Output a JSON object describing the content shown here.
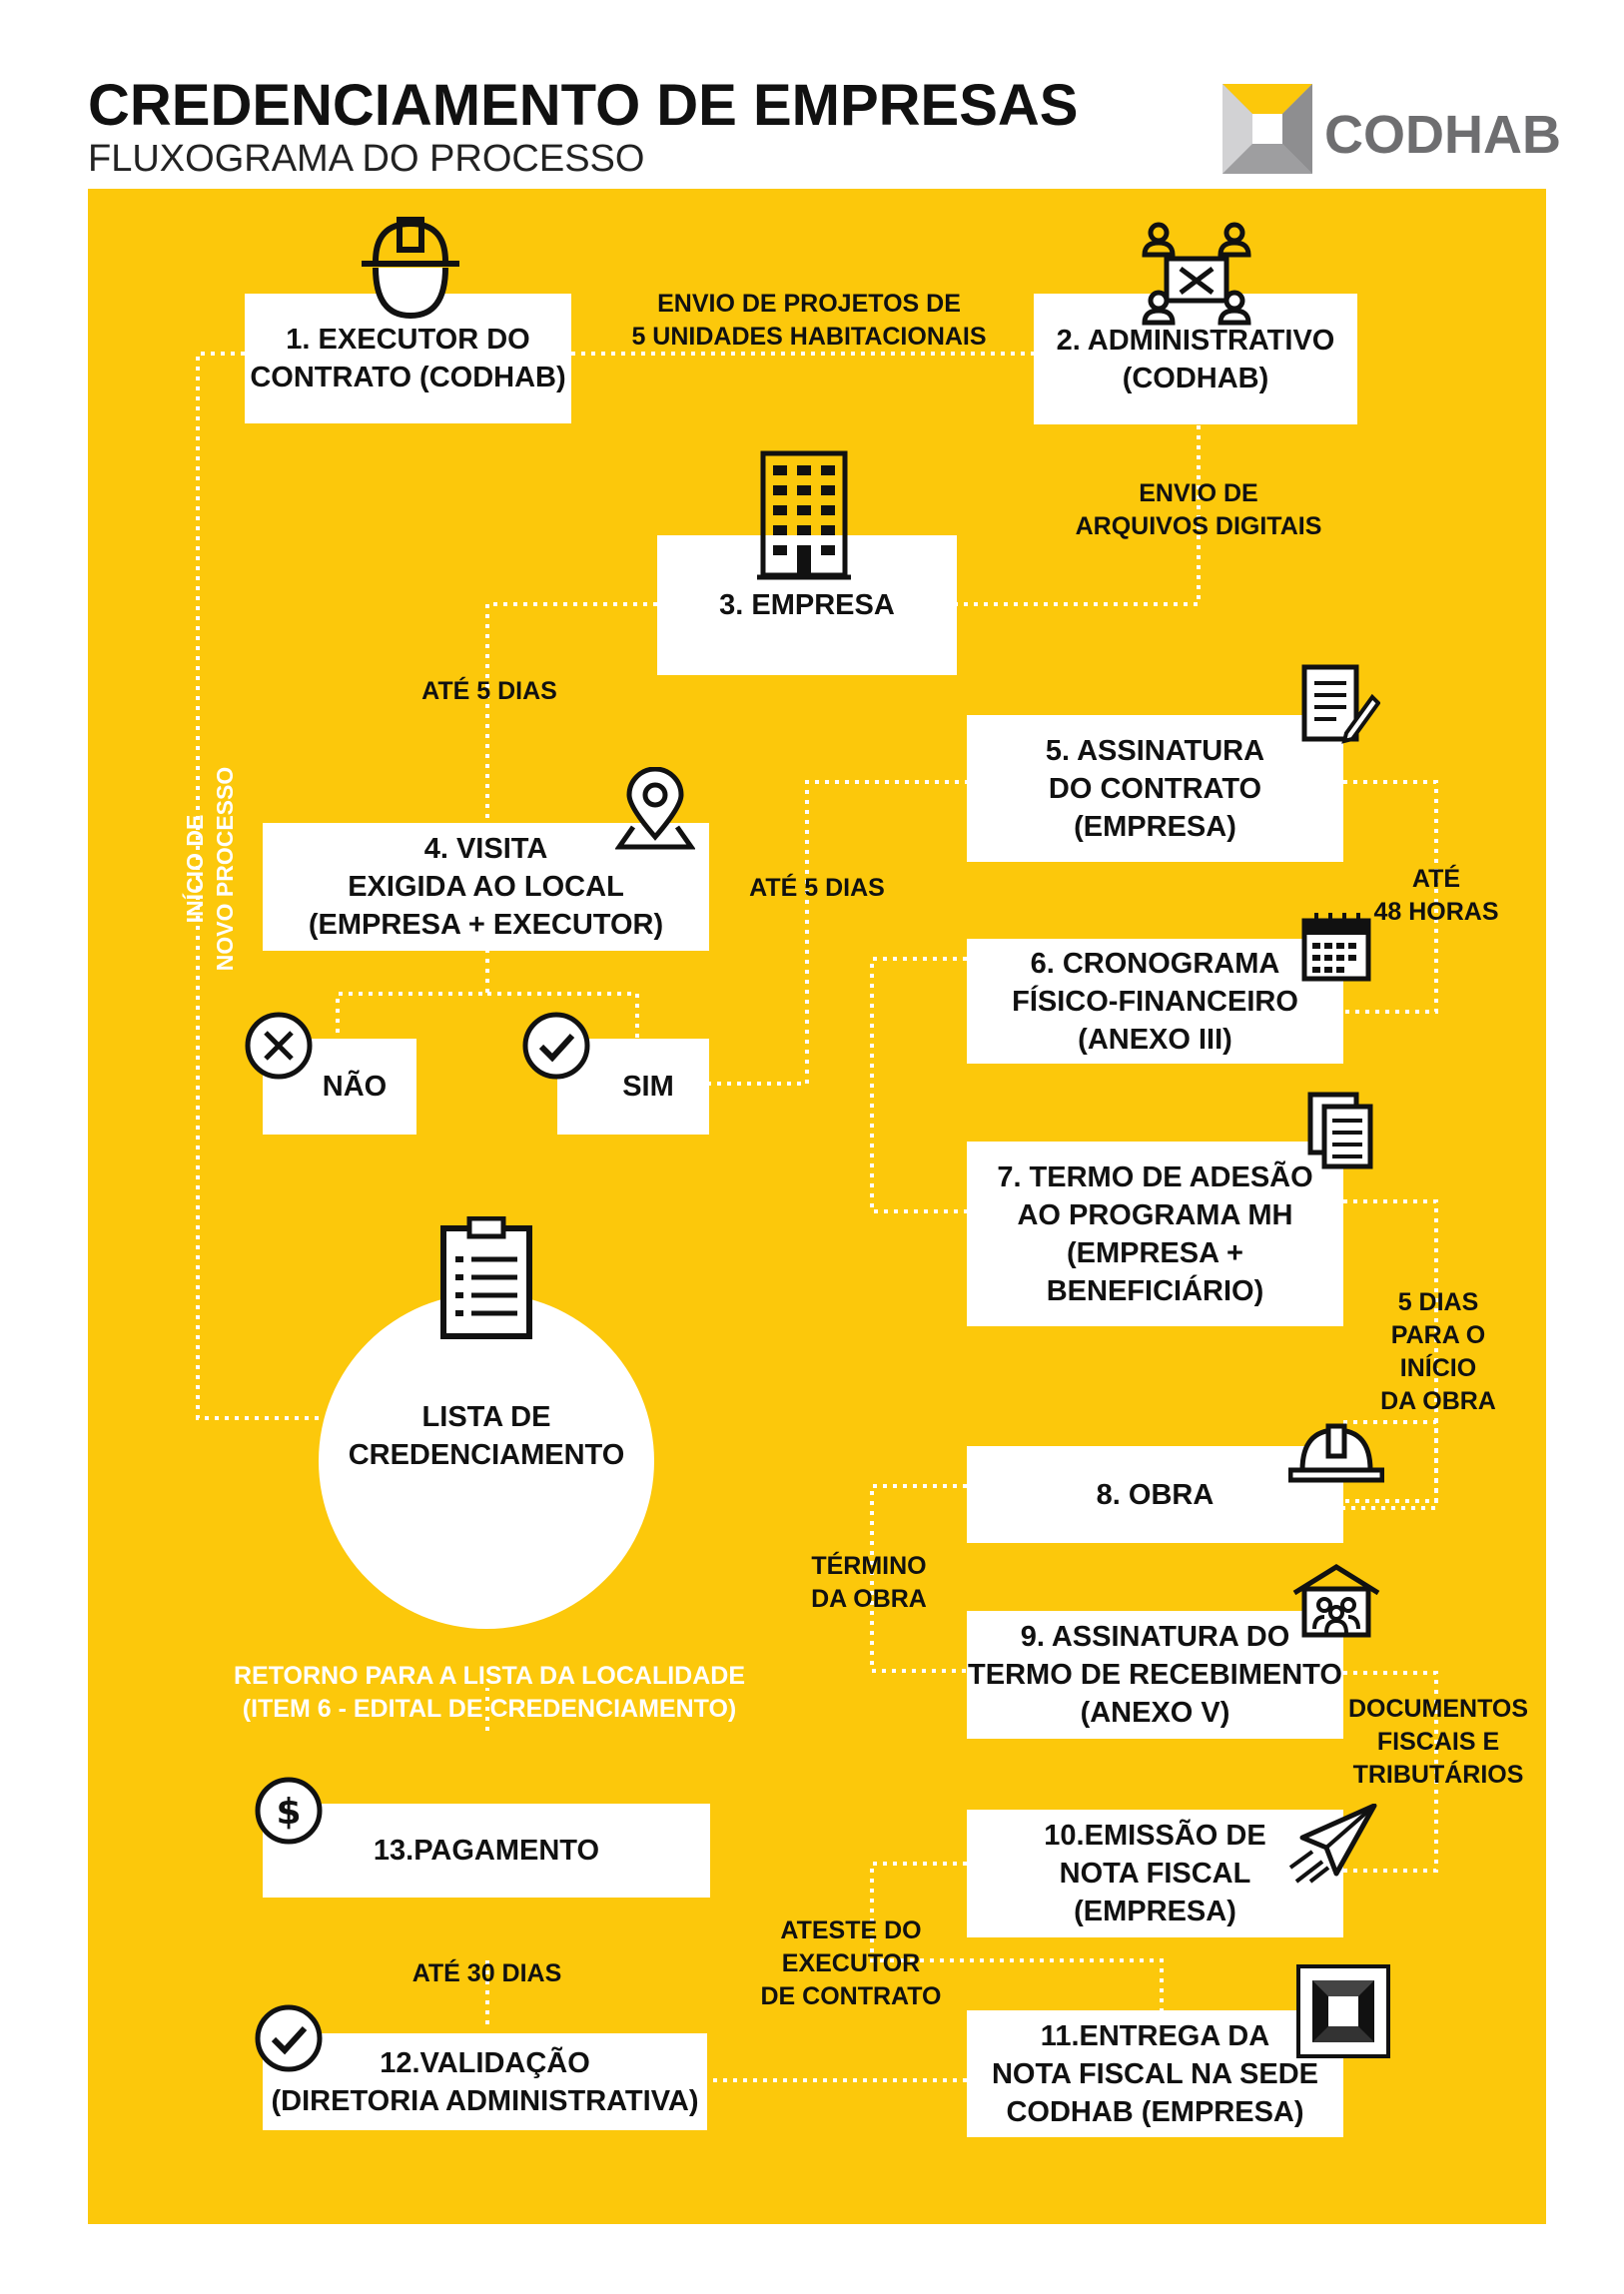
{
  "header": {
    "title": "CREDENCIAMENTO DE EMPRESAS",
    "subtitle": "FLUXOGRAMA DO PROCESSO",
    "logo_text": "CODHAB"
  },
  "colors": {
    "panel": "#fcc80b",
    "box": "#ffffff",
    "text": "#111111",
    "logo_gray": "#6e6e70"
  },
  "nodes": {
    "n1": [
      "1. EXECUTOR DO",
      "CONTRATO (CODHAB)"
    ],
    "n2": [
      "2. ADMINISTRATIVO",
      "(CODHAB)"
    ],
    "n3": [
      "3. EMPRESA"
    ],
    "n4": [
      "4. VISITA",
      "EXIGIDA AO LOCAL",
      "(EMPRESA + EXECUTOR)"
    ],
    "nao": [
      "NÃO"
    ],
    "sim": [
      "SIM"
    ],
    "n5": [
      "5. ASSINATURA",
      "DO CONTRATO",
      "(EMPRESA)"
    ],
    "n6": [
      "6. CRONOGRAMA",
      "FÍSICO-FINANCEIRO",
      "(ANEXO III)"
    ],
    "n7": [
      "7. TERMO DE ADESÃO",
      "AO PROGRAMA MH",
      "(EMPRESA +",
      "BENEFICIÁRIO)"
    ],
    "n8": [
      "8. OBRA"
    ],
    "n9": [
      "9. ASSINATURA DO",
      "TERMO DE RECEBIMENTO",
      "(ANEXO V)"
    ],
    "n10": [
      "10.EMISSÃO DE",
      "NOTA FISCAL",
      "(EMPRESA)"
    ],
    "n11": [
      "11.ENTREGA DA",
      "NOTA FISCAL NA SEDE",
      "CODHAB (EMPRESA)"
    ],
    "n12": [
      "12.VALIDAÇÃO",
      "(DIRETORIA ADMINISTRATIVA)"
    ],
    "n13": [
      "13.PAGAMENTO"
    ],
    "lista": [
      "LISTA DE",
      "CREDENCIAMENTO"
    ]
  },
  "edge_labels": {
    "e12": [
      "ENVIO DE PROJETOS DE",
      "5 UNIDADES HABITACIONAIS"
    ],
    "e23": [
      "ENVIO DE",
      "ARQUIVOS DIGITAIS"
    ],
    "e34": [
      "ATÉ 5 DIAS"
    ],
    "e45": [
      "ATÉ 5 DIAS"
    ],
    "e56": [
      "ATÉ",
      "48 HORAS"
    ],
    "e78": [
      "5 DIAS",
      "PARA O",
      "INÍCIO",
      "DA OBRA"
    ],
    "e89": [
      "TÉRMINO",
      "DA OBRA"
    ],
    "e910": [
      "DOCUMENTOS",
      "FISCAIS E",
      "TRIBUTÁRIOS"
    ],
    "e1011": [
      "ATESTE DO",
      "EXECUTOR",
      "DE CONTRATO"
    ],
    "e1213": [
      "ATÉ 30 DIAS"
    ],
    "retorno": [
      "RETORNO PARA A LISTA DA LOCALIDADE",
      "(ITEM 6 - EDITAL DE CREDENCIAMENTO)"
    ],
    "inicio": [
      "INÍCIO DE",
      "NOVO PROCESSO"
    ]
  },
  "icons": [
    "hard-hat-icon",
    "network-icon",
    "building-icon",
    "map-pin-icon",
    "x-circle-icon",
    "check-circle-icon",
    "document-pen-icon",
    "calendar-icon",
    "documents-icon",
    "helmet-icon",
    "house-people-icon",
    "paper-plane-icon",
    "square-logo-icon",
    "dollar-circle-icon",
    "check-circle-icon",
    "clipboard-icon"
  ]
}
